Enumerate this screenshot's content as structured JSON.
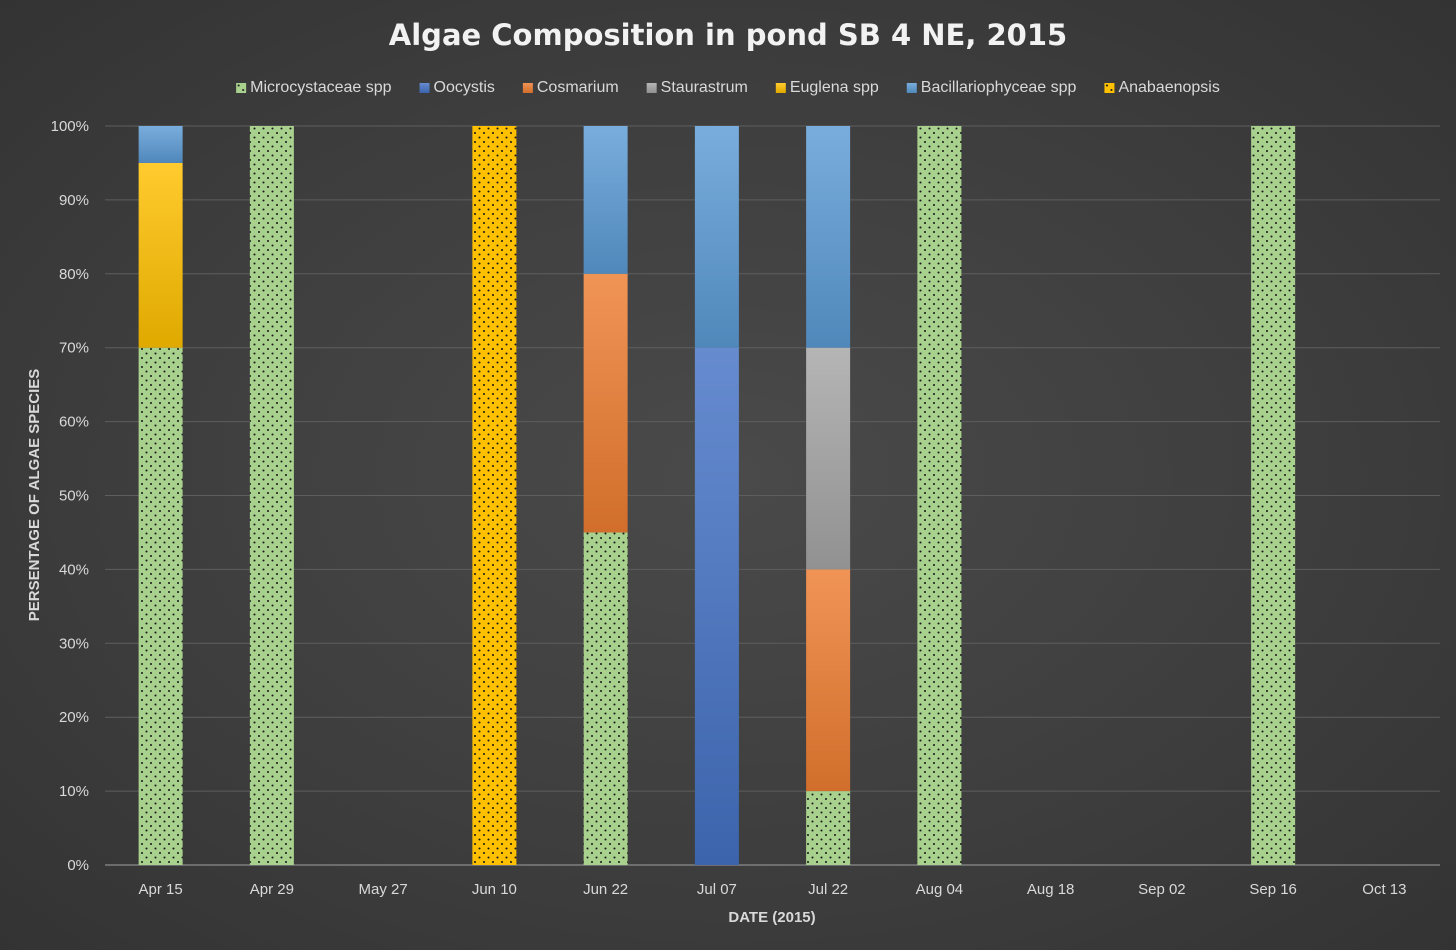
{
  "chart_data": {
    "type": "bar",
    "stacked": true,
    "title": "Algae Composition in pond SB 4 NE, 2015",
    "xlabel": "DATE (2015)",
    "ylabel": "PERSENTAGE OF ALGAE SPECIES",
    "ylim": [
      0,
      100
    ],
    "yticks": [
      "0%",
      "10%",
      "20%",
      "30%",
      "40%",
      "50%",
      "60%",
      "70%",
      "80%",
      "90%",
      "100%"
    ],
    "grid": true,
    "legend_position": "top",
    "categories": [
      "Apr 15",
      "Apr 29",
      "May 27",
      "Jun 10",
      "Jun 22",
      "Jul 07",
      "Jul 22",
      "Aug 04",
      "Aug 18",
      "Sep 02",
      "Sep 16",
      "Oct 13"
    ],
    "series": [
      {
        "name": "Microcystaceae spp",
        "color": "#a9d18e",
        "pattern": "dots",
        "values": [
          70,
          100,
          0,
          0,
          45,
          0,
          10,
          100,
          0,
          0,
          100,
          0
        ]
      },
      {
        "name": "Oocystis",
        "color": "#4472c4",
        "values": [
          0,
          0,
          0,
          0,
          0,
          70,
          0,
          0,
          0,
          0,
          0,
          0
        ]
      },
      {
        "name": "Cosmarium",
        "color": "#ed7d31",
        "values": [
          0,
          0,
          0,
          0,
          35,
          0,
          30,
          0,
          0,
          0,
          0,
          0
        ]
      },
      {
        "name": "Staurastrum",
        "color": "#a5a5a5",
        "values": [
          0,
          0,
          0,
          0,
          0,
          0,
          30,
          0,
          0,
          0,
          0,
          0
        ]
      },
      {
        "name": "Euglena spp",
        "color": "#ffc000",
        "values": [
          25,
          0,
          0,
          0,
          0,
          0,
          0,
          0,
          0,
          0,
          0,
          0
        ]
      },
      {
        "name": "Bacillariophyceae spp",
        "color": "#5b9bd5",
        "values": [
          5,
          0,
          0,
          0,
          20,
          30,
          30,
          0,
          0,
          0,
          0,
          0
        ]
      },
      {
        "name": "Anabaenopsis",
        "color": "#ffc000",
        "pattern": "dots",
        "values": [
          0,
          0,
          0,
          100,
          0,
          0,
          0,
          0,
          0,
          0,
          0,
          0
        ]
      }
    ]
  }
}
